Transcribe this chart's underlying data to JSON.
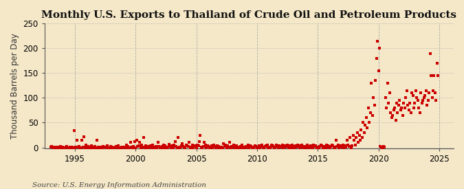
{
  "title": "Monthly U.S. Exports to Thailand of Crude Oil and Petroleum Products",
  "ylabel": "Thousand Barrels per Day",
  "source": "Source: U.S. Energy Information Administration",
  "background_color": "#f5e8c8",
  "plot_bg_color": "#f5e8c8",
  "marker_color": "#cc0000",
  "marker_size": 3,
  "xlim": [
    1992.5,
    2026.2
  ],
  "ylim": [
    -2,
    250
  ],
  "yticks": [
    0,
    50,
    100,
    150,
    200,
    250
  ],
  "xticks": [
    1995,
    2000,
    2005,
    2010,
    2015,
    2020,
    2025
  ],
  "title_fontsize": 11,
  "ylabel_fontsize": 8.5,
  "tick_fontsize": 8.5,
  "source_fontsize": 7.5,
  "data": {
    "dates": [
      1993.0,
      1993.083,
      1993.167,
      1993.25,
      1993.333,
      1993.417,
      1993.5,
      1993.583,
      1993.667,
      1993.75,
      1993.833,
      1993.917,
      1994.0,
      1994.083,
      1994.167,
      1994.25,
      1994.333,
      1994.417,
      1994.5,
      1994.583,
      1994.667,
      1994.75,
      1994.833,
      1994.917,
      1995.0,
      1995.083,
      1995.167,
      1995.25,
      1995.333,
      1995.417,
      1995.5,
      1995.583,
      1995.667,
      1995.75,
      1995.833,
      1995.917,
      1996.0,
      1996.083,
      1996.167,
      1996.25,
      1996.333,
      1996.417,
      1996.5,
      1996.583,
      1996.667,
      1996.75,
      1996.833,
      1996.917,
      1997.0,
      1997.083,
      1997.167,
      1997.25,
      1997.333,
      1997.417,
      1997.5,
      1997.583,
      1997.667,
      1997.75,
      1997.833,
      1997.917,
      1998.0,
      1998.083,
      1998.167,
      1998.25,
      1998.333,
      1998.417,
      1998.5,
      1998.583,
      1998.667,
      1998.75,
      1998.833,
      1998.917,
      1999.0,
      1999.083,
      1999.167,
      1999.25,
      1999.333,
      1999.417,
      1999.5,
      1999.583,
      1999.667,
      1999.75,
      1999.833,
      1999.917,
      2000.0,
      2000.083,
      2000.167,
      2000.25,
      2000.333,
      2000.417,
      2000.5,
      2000.583,
      2000.667,
      2000.75,
      2000.833,
      2000.917,
      2001.0,
      2001.083,
      2001.167,
      2001.25,
      2001.333,
      2001.417,
      2001.5,
      2001.583,
      2001.667,
      2001.75,
      2001.833,
      2001.917,
      2002.0,
      2002.083,
      2002.167,
      2002.25,
      2002.333,
      2002.417,
      2002.5,
      2002.583,
      2002.667,
      2002.75,
      2002.833,
      2002.917,
      2003.0,
      2003.083,
      2003.167,
      2003.25,
      2003.333,
      2003.417,
      2003.5,
      2003.583,
      2003.667,
      2003.75,
      2003.833,
      2003.917,
      2004.0,
      2004.083,
      2004.167,
      2004.25,
      2004.333,
      2004.417,
      2004.5,
      2004.583,
      2004.667,
      2004.75,
      2004.833,
      2004.917,
      2005.0,
      2005.083,
      2005.167,
      2005.25,
      2005.333,
      2005.417,
      2005.5,
      2005.583,
      2005.667,
      2005.75,
      2005.833,
      2005.917,
      2006.0,
      2006.083,
      2006.167,
      2006.25,
      2006.333,
      2006.417,
      2006.5,
      2006.583,
      2006.667,
      2006.75,
      2006.833,
      2006.917,
      2007.0,
      2007.083,
      2007.167,
      2007.25,
      2007.333,
      2007.417,
      2007.5,
      2007.583,
      2007.667,
      2007.75,
      2007.833,
      2007.917,
      2008.0,
      2008.083,
      2008.167,
      2008.25,
      2008.333,
      2008.417,
      2008.5,
      2008.583,
      2008.667,
      2008.75,
      2008.833,
      2008.917,
      2009.0,
      2009.083,
      2009.167,
      2009.25,
      2009.333,
      2009.417,
      2009.5,
      2009.583,
      2009.667,
      2009.75,
      2009.833,
      2009.917,
      2010.0,
      2010.083,
      2010.167,
      2010.25,
      2010.333,
      2010.417,
      2010.5,
      2010.583,
      2010.667,
      2010.75,
      2010.833,
      2010.917,
      2011.0,
      2011.083,
      2011.167,
      2011.25,
      2011.333,
      2011.417,
      2011.5,
      2011.583,
      2011.667,
      2011.75,
      2011.833,
      2011.917,
      2012.0,
      2012.083,
      2012.167,
      2012.25,
      2012.333,
      2012.417,
      2012.5,
      2012.583,
      2012.667,
      2012.75,
      2012.833,
      2012.917,
      2013.0,
      2013.083,
      2013.167,
      2013.25,
      2013.333,
      2013.417,
      2013.5,
      2013.583,
      2013.667,
      2013.75,
      2013.833,
      2013.917,
      2014.0,
      2014.083,
      2014.167,
      2014.25,
      2014.333,
      2014.417,
      2014.5,
      2014.583,
      2014.667,
      2014.75,
      2014.833,
      2014.917,
      2015.0,
      2015.083,
      2015.167,
      2015.25,
      2015.333,
      2015.417,
      2015.5,
      2015.583,
      2015.667,
      2015.75,
      2015.833,
      2015.917,
      2016.0,
      2016.083,
      2016.167,
      2016.25,
      2016.333,
      2016.417,
      2016.5,
      2016.583,
      2016.667,
      2016.75,
      2016.833,
      2016.917,
      2017.0,
      2017.083,
      2017.167,
      2017.25,
      2017.333,
      2017.417,
      2017.5,
      2017.583,
      2017.667,
      2017.75,
      2017.833,
      2017.917,
      2018.0,
      2018.083,
      2018.167,
      2018.25,
      2018.333,
      2018.417,
      2018.5,
      2018.583,
      2018.667,
      2018.75,
      2018.833,
      2018.917,
      2019.0,
      2019.083,
      2019.167,
      2019.25,
      2019.333,
      2019.417,
      2019.5,
      2019.583,
      2019.667,
      2019.75,
      2019.833,
      2019.917,
      2020.0,
      2020.083,
      2020.167,
      2020.25,
      2020.333,
      2020.417,
      2020.5,
      2020.583,
      2020.667,
      2020.75,
      2020.833,
      2020.917,
      2021.0,
      2021.083,
      2021.167,
      2021.25,
      2021.333,
      2021.417,
      2021.5,
      2021.583,
      2021.667,
      2021.75,
      2021.833,
      2021.917,
      2022.0,
      2022.083,
      2022.167,
      2022.25,
      2022.333,
      2022.417,
      2022.5,
      2022.583,
      2022.667,
      2022.75,
      2022.833,
      2022.917,
      2023.0,
      2023.083,
      2023.167,
      2023.25,
      2023.333,
      2023.417,
      2023.5,
      2023.583,
      2023.667,
      2023.75,
      2023.833,
      2023.917,
      2024.0,
      2024.083,
      2024.167,
      2024.25,
      2024.333,
      2024.417,
      2024.5,
      2024.583,
      2024.667,
      2024.75,
      2024.833,
      2024.917
    ],
    "values": [
      1,
      2,
      1,
      0,
      1,
      0,
      0,
      1,
      0,
      0,
      2,
      0,
      1,
      0,
      0,
      1,
      2,
      0,
      0,
      1,
      0,
      1,
      0,
      34,
      0,
      1,
      15,
      1,
      2,
      0,
      0,
      14,
      1,
      22,
      0,
      5,
      0,
      2,
      1,
      0,
      3,
      1,
      0,
      0,
      2,
      0,
      14,
      1,
      0,
      1,
      0,
      0,
      2,
      1,
      1,
      0,
      3,
      0,
      0,
      2,
      0,
      1,
      0,
      0,
      1,
      2,
      0,
      3,
      0,
      0,
      1,
      0,
      1,
      1,
      0,
      5,
      2,
      0,
      0,
      10,
      1,
      0,
      2,
      12,
      0,
      15,
      2,
      4,
      10,
      0,
      5,
      1,
      20,
      0,
      3,
      1,
      0,
      2,
      1,
      3,
      0,
      5,
      0,
      1,
      2,
      0,
      10,
      2,
      0,
      1,
      2,
      0,
      5,
      3,
      0,
      0,
      1,
      6,
      2,
      0,
      3,
      0,
      5,
      12,
      2,
      0,
      20,
      1,
      0,
      3,
      7,
      2,
      1,
      0,
      5,
      3,
      2,
      10,
      0,
      1,
      5,
      0,
      3,
      2,
      0,
      5,
      3,
      12,
      25,
      1,
      0,
      2,
      10,
      5,
      0,
      3,
      2,
      0,
      1,
      3,
      0,
      5,
      2,
      0,
      1,
      3,
      2,
      0,
      0,
      1,
      0,
      8,
      2,
      5,
      0,
      3,
      1,
      10,
      0,
      2,
      1,
      5,
      0,
      2,
      3,
      0,
      1,
      0,
      2,
      5,
      0,
      1,
      0,
      2,
      1,
      5,
      0,
      3,
      2,
      0,
      1,
      0,
      3,
      2,
      0,
      1,
      3,
      0,
      2,
      5,
      1,
      0,
      2,
      3,
      5,
      0,
      1,
      0,
      5,
      2,
      3,
      0,
      1,
      5,
      2,
      0,
      3,
      1,
      2,
      5,
      0,
      3,
      1,
      2,
      5,
      0,
      3,
      1,
      0,
      5,
      2,
      0,
      3,
      1,
      5,
      2,
      0,
      3,
      5,
      1,
      0,
      2,
      0,
      1,
      5,
      2,
      0,
      3,
      1,
      0,
      5,
      2,
      3,
      0,
      1,
      0,
      2,
      5,
      3,
      0,
      1,
      2,
      0,
      5,
      3,
      1,
      0,
      2,
      5,
      3,
      1,
      0,
      15,
      2,
      5,
      0,
      3,
      1,
      2,
      5,
      0,
      3,
      1,
      15,
      5,
      2,
      20,
      0,
      3,
      25,
      15,
      5,
      20,
      30,
      10,
      25,
      15,
      35,
      20,
      50,
      30,
      45,
      60,
      40,
      80,
      50,
      70,
      130,
      65,
      100,
      85,
      135,
      180,
      215,
      155,
      200,
      2,
      1,
      0,
      2,
      1,
      100,
      80,
      130,
      90,
      110,
      70,
      60,
      65,
      75,
      80,
      55,
      90,
      70,
      85,
      95,
      75,
      80,
      65,
      90,
      80,
      100,
      115,
      85,
      75,
      90,
      70,
      110,
      105,
      80,
      90,
      115,
      100,
      95,
      80,
      70,
      110,
      90,
      95,
      100,
      105,
      115,
      85,
      95,
      110,
      190,
      145,
      100,
      115,
      145,
      110,
      95,
      170,
      145
    ]
  }
}
